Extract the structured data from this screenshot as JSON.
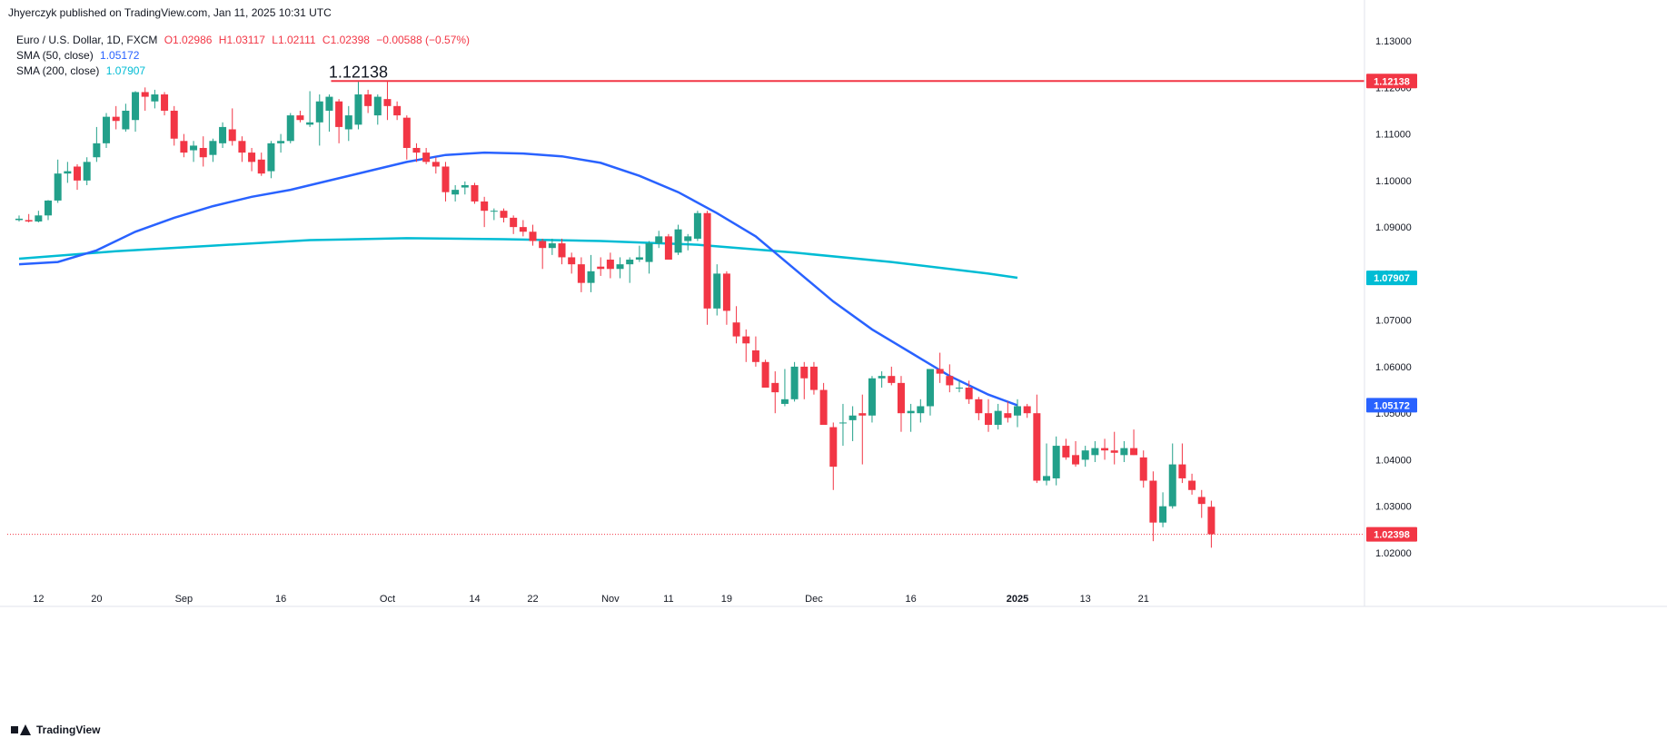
{
  "header": {
    "publisher": "Jhyerczyk published on TradingView.com, Jan 11, 2025 10:31 UTC"
  },
  "legend": {
    "symbol": "Euro / U.S. Dollar, 1D, FXCM",
    "open": "O1.02986",
    "high": "H1.03117",
    "low": "L1.02111",
    "close": "C1.02398",
    "change": "−0.00588 (−0.57%)",
    "sma50_label": "SMA (50, close)",
    "sma50_value": "1.05172",
    "sma200_label": "SMA (200, close)",
    "sma200_value": "1.07907"
  },
  "footer": {
    "brand": "TradingView"
  },
  "colors": {
    "up": "#26a69a",
    "up_body": "#22a08a",
    "down": "#f23645",
    "sma50": "#2962ff",
    "sma200": "#00bcd4",
    "resistance": "#f23645",
    "background": "#ffffff"
  },
  "chart_data": {
    "type": "candlestick",
    "title": "Euro / U.S. Dollar, 1D, FXCM",
    "ylim": [
      1.012,
      1.1345
    ],
    "y_ticks": [
      "1.13000",
      "1.12000",
      "1.11000",
      "1.10000",
      "1.09000",
      "1.08000",
      "1.07000",
      "1.06000",
      "1.05000",
      "1.04000",
      "1.03000",
      "1.02000"
    ],
    "x_ticks": [
      {
        "label": "12",
        "day": 2
      },
      {
        "label": "20",
        "day": 8
      },
      {
        "label": "Sep",
        "day": 17
      },
      {
        "label": "16",
        "day": 27
      },
      {
        "label": "Oct",
        "day": 38
      },
      {
        "label": "14",
        "day": 47
      },
      {
        "label": "22",
        "day": 53
      },
      {
        "label": "Nov",
        "day": 61
      },
      {
        "label": "11",
        "day": 67
      },
      {
        "label": "19",
        "day": 73
      },
      {
        "label": "Dec",
        "day": 82
      },
      {
        "label": "16",
        "day": 92
      },
      {
        "label": "2025",
        "day": 103,
        "bold": true
      },
      {
        "label": "13",
        "day": 110
      },
      {
        "label": "21",
        "day": 116
      }
    ],
    "candles": [
      {
        "o": 1.0915,
        "h": 1.0925,
        "l": 1.0912,
        "c": 1.0918
      },
      {
        "o": 1.0915,
        "h": 1.0928,
        "l": 1.091,
        "c": 1.0912
      },
      {
        "o": 1.0912,
        "h": 1.0935,
        "l": 1.091,
        "c": 1.0925
      },
      {
        "o": 1.0925,
        "h": 1.0958,
        "l": 1.0915,
        "c": 1.0957
      },
      {
        "o": 1.0957,
        "h": 1.1045,
        "l": 1.0952,
        "c": 1.1015
      },
      {
        "o": 1.1015,
        "h": 1.104,
        "l": 1.0995,
        "c": 1.102
      },
      {
        "o": 1.103,
        "h": 1.1035,
        "l": 1.098,
        "c": 1.1
      },
      {
        "o": 1.1,
        "h": 1.105,
        "l": 1.099,
        "c": 1.104
      },
      {
        "o": 1.105,
        "h": 1.1115,
        "l": 1.104,
        "c": 1.108
      },
      {
        "o": 1.108,
        "h": 1.1145,
        "l": 1.107,
        "c": 1.1137
      },
      {
        "o": 1.1137,
        "h": 1.116,
        "l": 1.111,
        "c": 1.1128
      },
      {
        "o": 1.111,
        "h": 1.1165,
        "l": 1.1105,
        "c": 1.115
      },
      {
        "o": 1.113,
        "h": 1.1192,
        "l": 1.1105,
        "c": 1.119
      },
      {
        "o": 1.119,
        "h": 1.12,
        "l": 1.115,
        "c": 1.118
      },
      {
        "o": 1.117,
        "h": 1.1195,
        "l": 1.1155,
        "c": 1.1185
      },
      {
        "o": 1.1185,
        "h": 1.119,
        "l": 1.114,
        "c": 1.115
      },
      {
        "o": 1.115,
        "h": 1.116,
        "l": 1.1075,
        "c": 1.109
      },
      {
        "o": 1.1085,
        "h": 1.11,
        "l": 1.105,
        "c": 1.106
      },
      {
        "o": 1.1065,
        "h": 1.1085,
        "l": 1.104,
        "c": 1.1075
      },
      {
        "o": 1.107,
        "h": 1.1095,
        "l": 1.103,
        "c": 1.105
      },
      {
        "o": 1.1055,
        "h": 1.109,
        "l": 1.104,
        "c": 1.1085
      },
      {
        "o": 1.108,
        "h": 1.1125,
        "l": 1.107,
        "c": 1.1115
      },
      {
        "o": 1.111,
        "h": 1.1155,
        "l": 1.1075,
        "c": 1.1085
      },
      {
        "o": 1.1085,
        "h": 1.1095,
        "l": 1.104,
        "c": 1.106
      },
      {
        "o": 1.106,
        "h": 1.107,
        "l": 1.102,
        "c": 1.104
      },
      {
        "o": 1.1045,
        "h": 1.106,
        "l": 1.101,
        "c": 1.1015
      },
      {
        "o": 1.102,
        "h": 1.1085,
        "l": 1.1005,
        "c": 1.108
      },
      {
        "o": 1.108,
        "h": 1.11,
        "l": 1.106,
        "c": 1.1085
      },
      {
        "o": 1.1085,
        "h": 1.1145,
        "l": 1.108,
        "c": 1.114
      },
      {
        "o": 1.114,
        "h": 1.115,
        "l": 1.1125,
        "c": 1.113
      },
      {
        "o": 1.112,
        "h": 1.1192,
        "l": 1.1115,
        "c": 1.1125
      },
      {
        "o": 1.1125,
        "h": 1.1185,
        "l": 1.1075,
        "c": 1.117
      },
      {
        "o": 1.115,
        "h": 1.1185,
        "l": 1.1105,
        "c": 1.118
      },
      {
        "o": 1.117,
        "h": 1.1175,
        "l": 1.108,
        "c": 1.1115
      },
      {
        "o": 1.111,
        "h": 1.116,
        "l": 1.1085,
        "c": 1.114
      },
      {
        "o": 1.112,
        "h": 1.1214,
        "l": 1.111,
        "c": 1.1185
      },
      {
        "o": 1.1185,
        "h": 1.1195,
        "l": 1.1145,
        "c": 1.116
      },
      {
        "o": 1.114,
        "h": 1.1185,
        "l": 1.112,
        "c": 1.118
      },
      {
        "o": 1.1175,
        "h": 1.1214,
        "l": 1.113,
        "c": 1.116
      },
      {
        "o": 1.116,
        "h": 1.117,
        "l": 1.113,
        "c": 1.114
      },
      {
        "o": 1.1135,
        "h": 1.114,
        "l": 1.1045,
        "c": 1.107
      },
      {
        "o": 1.107,
        "h": 1.108,
        "l": 1.104,
        "c": 1.106
      },
      {
        "o": 1.106,
        "h": 1.107,
        "l": 1.1035,
        "c": 1.104
      },
      {
        "o": 1.104,
        "h": 1.105,
        "l": 1.1015,
        "c": 1.103
      },
      {
        "o": 1.103,
        "h": 1.104,
        "l": 1.0955,
        "c": 1.0975
      },
      {
        "o": 1.097,
        "h": 1.099,
        "l": 1.0955,
        "c": 1.098
      },
      {
        "o": 1.0985,
        "h": 1.0998,
        "l": 1.097,
        "c": 1.099
      },
      {
        "o": 1.099,
        "h": 1.0995,
        "l": 1.095,
        "c": 1.0955
      },
      {
        "o": 1.0955,
        "h": 1.0965,
        "l": 1.09,
        "c": 1.0935
      },
      {
        "o": 1.0935,
        "h": 1.094,
        "l": 1.0915,
        "c": 1.0935
      },
      {
        "o": 1.0935,
        "h": 1.094,
        "l": 1.091,
        "c": 1.092
      },
      {
        "o": 1.092,
        "h": 1.0925,
        "l": 1.0885,
        "c": 1.09
      },
      {
        "o": 1.09,
        "h": 1.0915,
        "l": 1.088,
        "c": 1.089
      },
      {
        "o": 1.089,
        "h": 1.0905,
        "l": 1.086,
        "c": 1.087
      },
      {
        "o": 1.087,
        "h": 1.0875,
        "l": 1.081,
        "c": 1.0855
      },
      {
        "o": 1.0855,
        "h": 1.0875,
        "l": 1.084,
        "c": 1.0865
      },
      {
        "o": 1.0865,
        "h": 1.0875,
        "l": 1.082,
        "c": 1.0835
      },
      {
        "o": 1.0835,
        "h": 1.0845,
        "l": 1.08,
        "c": 1.082
      },
      {
        "o": 1.082,
        "h": 1.0835,
        "l": 1.076,
        "c": 1.078
      },
      {
        "o": 1.078,
        "h": 1.084,
        "l": 1.076,
        "c": 1.0805
      },
      {
        "o": 1.0815,
        "h": 1.0835,
        "l": 1.0795,
        "c": 1.081
      },
      {
        "o": 1.083,
        "h": 1.0845,
        "l": 1.079,
        "c": 1.081
      },
      {
        "o": 1.081,
        "h": 1.0835,
        "l": 1.079,
        "c": 1.082
      },
      {
        "o": 1.082,
        "h": 1.0835,
        "l": 1.078,
        "c": 1.083
      },
      {
        "o": 1.083,
        "h": 1.086,
        "l": 1.0825,
        "c": 1.0835
      },
      {
        "o": 1.0825,
        "h": 1.087,
        "l": 1.08,
        "c": 1.0865
      },
      {
        "o": 1.0865,
        "h": 1.0892,
        "l": 1.0855,
        "c": 1.088
      },
      {
        "o": 1.088,
        "h": 1.0885,
        "l": 1.083,
        "c": 1.083
      },
      {
        "o": 1.0845,
        "h": 1.0905,
        "l": 1.084,
        "c": 1.0895
      },
      {
        "o": 1.087,
        "h": 1.0885,
        "l": 1.085,
        "c": 1.088
      },
      {
        "o": 1.0875,
        "h": 1.0935,
        "l": 1.087,
        "c": 1.093
      },
      {
        "o": 1.093,
        "h": 1.0935,
        "l": 1.069,
        "c": 1.0725
      },
      {
        "o": 1.0725,
        "h": 1.082,
        "l": 1.071,
        "c": 1.08
      },
      {
        "o": 1.08,
        "h": 1.0805,
        "l": 1.069,
        "c": 1.072
      },
      {
        "o": 1.0695,
        "h": 1.073,
        "l": 1.065,
        "c": 1.0665
      },
      {
        "o": 1.0665,
        "h": 1.068,
        "l": 1.061,
        "c": 1.065
      },
      {
        "o": 1.0635,
        "h": 1.0665,
        "l": 1.06,
        "c": 1.061
      },
      {
        "o": 1.061,
        "h": 1.0615,
        "l": 1.0555,
        "c": 1.0555
      },
      {
        "o": 1.0565,
        "h": 1.059,
        "l": 1.05,
        "c": 1.0545
      },
      {
        "o": 1.052,
        "h": 1.0595,
        "l": 1.0515,
        "c": 1.053
      },
      {
        "o": 1.053,
        "h": 1.061,
        "l": 1.0525,
        "c": 1.06
      },
      {
        "o": 1.06,
        "h": 1.061,
        "l": 1.053,
        "c": 1.0575
      },
      {
        "o": 1.06,
        "h": 1.061,
        "l": 1.054,
        "c": 1.055
      },
      {
        "o": 1.055,
        "h": 1.0565,
        "l": 1.0475,
        "c": 1.0475
      },
      {
        "o": 1.047,
        "h": 1.048,
        "l": 1.0335,
        "c": 1.0385
      },
      {
        "o": 1.048,
        "h": 1.052,
        "l": 1.043,
        "c": 1.048
      },
      {
        "o": 1.0485,
        "h": 1.0515,
        "l": 1.044,
        "c": 1.0495
      },
      {
        "o": 1.05,
        "h": 1.054,
        "l": 1.039,
        "c": 1.0495
      },
      {
        "o": 1.0495,
        "h": 1.058,
        "l": 1.048,
        "c": 1.0575
      },
      {
        "o": 1.0575,
        "h": 1.059,
        "l": 1.0555,
        "c": 1.058
      },
      {
        "o": 1.058,
        "h": 1.06,
        "l": 1.056,
        "c": 1.0565
      },
      {
        "o": 1.0565,
        "h": 1.058,
        "l": 1.046,
        "c": 1.05
      },
      {
        "o": 1.05,
        "h": 1.052,
        "l": 1.046,
        "c": 1.0505
      },
      {
        "o": 1.05,
        "h": 1.053,
        "l": 1.048,
        "c": 1.0515
      },
      {
        "o": 1.0515,
        "h": 1.0595,
        "l": 1.0495,
        "c": 1.0595
      },
      {
        "o": 1.0595,
        "h": 1.063,
        "l": 1.0565,
        "c": 1.0585
      },
      {
        "o": 1.058,
        "h": 1.0605,
        "l": 1.0545,
        "c": 1.056
      },
      {
        "o": 1.0555,
        "h": 1.057,
        "l": 1.0545,
        "c": 1.0555
      },
      {
        "o": 1.0555,
        "h": 1.057,
        "l": 1.052,
        "c": 1.053
      },
      {
        "o": 1.053,
        "h": 1.0535,
        "l": 1.0485,
        "c": 1.05
      },
      {
        "o": 1.05,
        "h": 1.053,
        "l": 1.046,
        "c": 1.0475
      },
      {
        "o": 1.0475,
        "h": 1.052,
        "l": 1.0465,
        "c": 1.0505
      },
      {
        "o": 1.05,
        "h": 1.0525,
        "l": 1.048,
        "c": 1.049
      },
      {
        "o": 1.0495,
        "h": 1.053,
        "l": 1.047,
        "c": 1.0515
      },
      {
        "o": 1.0515,
        "h": 1.052,
        "l": 1.049,
        "c": 1.05
      },
      {
        "o": 1.05,
        "h": 1.054,
        "l": 1.035,
        "c": 1.0355
      },
      {
        "o": 1.0355,
        "h": 1.0435,
        "l": 1.0345,
        "c": 1.0365
      },
      {
        "o": 1.036,
        "h": 1.045,
        "l": 1.0345,
        "c": 1.043
      },
      {
        "o": 1.043,
        "h": 1.0445,
        "l": 1.04,
        "c": 1.0405
      },
      {
        "o": 1.041,
        "h": 1.044,
        "l": 1.0385,
        "c": 1.039
      },
      {
        "o": 1.04,
        "h": 1.043,
        "l": 1.0385,
        "c": 1.042
      },
      {
        "o": 1.041,
        "h": 1.044,
        "l": 1.0395,
        "c": 1.0425
      },
      {
        "o": 1.0425,
        "h": 1.0445,
        "l": 1.04,
        "c": 1.042
      },
      {
        "o": 1.042,
        "h": 1.046,
        "l": 1.039,
        "c": 1.0415
      },
      {
        "o": 1.041,
        "h": 1.044,
        "l": 1.0395,
        "c": 1.0425
      },
      {
        "o": 1.0425,
        "h": 1.0465,
        "l": 1.041,
        "c": 1.041
      },
      {
        "o": 1.0405,
        "h": 1.042,
        "l": 1.034,
        "c": 1.0355
      },
      {
        "o": 1.0355,
        "h": 1.0375,
        "l": 1.0225,
        "c": 1.0265
      },
      {
        "o": 1.0265,
        "h": 1.033,
        "l": 1.0255,
        "c": 1.03
      },
      {
        "o": 1.03,
        "h": 1.0435,
        "l": 1.0295,
        "c": 1.039
      },
      {
        "o": 1.039,
        "h": 1.0435,
        "l": 1.035,
        "c": 1.036
      },
      {
        "o": 1.0355,
        "h": 1.037,
        "l": 1.0325,
        "c": 1.0335
      },
      {
        "o": 1.032,
        "h": 1.0335,
        "l": 1.0275,
        "c": 1.0305
      },
      {
        "o": 1.0299,
        "h": 1.0312,
        "l": 1.0211,
        "c": 1.024
      }
    ],
    "sma50": [
      [
        0,
        1.082
      ],
      [
        4,
        1.0825
      ],
      [
        8,
        1.085
      ],
      [
        12,
        1.089
      ],
      [
        16,
        1.092
      ],
      [
        20,
        1.0945
      ],
      [
        24,
        1.0965
      ],
      [
        28,
        1.098
      ],
      [
        32,
        1.1
      ],
      [
        36,
        1.102
      ],
      [
        40,
        1.104
      ],
      [
        44,
        1.1055
      ],
      [
        48,
        1.106
      ],
      [
        52,
        1.1058
      ],
      [
        56,
        1.1052
      ],
      [
        60,
        1.1038
      ],
      [
        64,
        1.101
      ],
      [
        68,
        1.0975
      ],
      [
        72,
        1.093
      ],
      [
        76,
        1.088
      ],
      [
        80,
        1.081
      ],
      [
        84,
        1.074
      ],
      [
        88,
        1.068
      ],
      [
        92,
        1.063
      ],
      [
        96,
        1.058
      ],
      [
        100,
        1.054
      ],
      [
        103,
        1.0517
      ]
    ],
    "sma200": [
      [
        0,
        1.0832
      ],
      [
        10,
        1.0848
      ],
      [
        20,
        1.086
      ],
      [
        30,
        1.0872
      ],
      [
        40,
        1.0876
      ],
      [
        50,
        1.0874
      ],
      [
        60,
        1.087
      ],
      [
        70,
        1.0862
      ],
      [
        80,
        1.0845
      ],
      [
        90,
        1.0825
      ],
      [
        100,
        1.08
      ],
      [
        103,
        1.0791
      ]
    ],
    "resistance": {
      "value": 1.12138,
      "label": "1.12138",
      "axis_label": "1.12138"
    },
    "last_price": {
      "value": 1.02398,
      "axis_label": "1.02398"
    },
    "sma50_axis_label": "1.05172",
    "sma200_axis_label": "1.07907"
  }
}
